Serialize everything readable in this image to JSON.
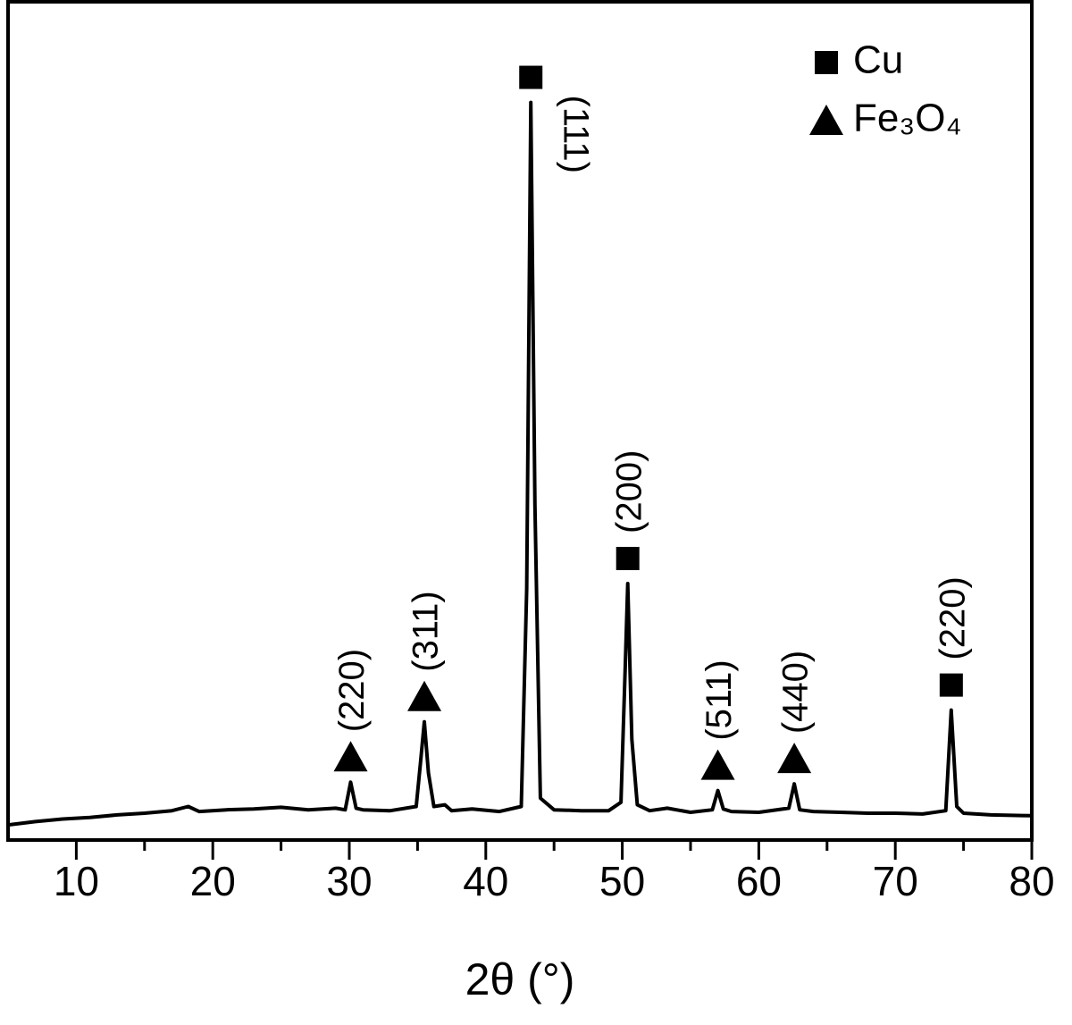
{
  "chart_data": {
    "type": "line",
    "xlabel": "2θ (°)",
    "color": "#000000",
    "xlim": [
      5,
      80
    ],
    "xticks": [
      10,
      20,
      30,
      40,
      50,
      60,
      70,
      80
    ],
    "xminorticks": [
      15,
      25,
      35,
      45,
      55,
      65,
      75
    ],
    "ylim": [
      0,
      100
    ],
    "x": [
      5,
      7,
      9,
      11,
      13,
      15,
      17,
      18.2,
      19,
      21,
      23,
      25,
      27,
      29,
      29.7,
      30.1,
      30.5,
      31,
      33,
      34.9,
      35.2,
      35.5,
      35.8,
      36.2,
      37,
      37.5,
      39,
      41,
      42.6,
      43.0,
      43.3,
      43.6,
      44,
      45,
      47,
      49,
      49.9,
      50.2,
      50.4,
      50.7,
      51.1,
      52,
      53.3,
      55,
      56.6,
      57.0,
      57.4,
      58,
      60,
      62.2,
      62.6,
      63.0,
      64,
      66,
      68,
      70,
      72,
      73.7,
      74.1,
      74.5,
      75,
      77,
      80
    ],
    "values": [
      1.8,
      2.2,
      2.5,
      2.7,
      3.0,
      3.2,
      3.5,
      4.0,
      3.4,
      3.6,
      3.7,
      3.9,
      3.6,
      3.8,
      3.6,
      6.9,
      3.8,
      3.6,
      3.5,
      4.0,
      9,
      14.1,
      8,
      4.0,
      4.2,
      3.5,
      3.7,
      3.4,
      4.0,
      30,
      88,
      40,
      5,
      3.6,
      3.5,
      3.5,
      4.5,
      20,
      30.6,
      12,
      4.2,
      3.5,
      3.8,
      3.3,
      3.6,
      5.9,
      3.7,
      3.4,
      3.3,
      3.8,
      6.7,
      3.6,
      3.4,
      3.3,
      3.2,
      3.2,
      3.1,
      3.5,
      15.5,
      4.0,
      3.2,
      3.0,
      2.9
    ],
    "annotations": [
      {
        "x": 30.1,
        "y": 6.9,
        "label": "(220)",
        "marker": "triangle"
      },
      {
        "x": 35.5,
        "y": 14.1,
        "label": "(311)",
        "marker": "triangle"
      },
      {
        "x": 43.3,
        "y": 88,
        "label": "(111)",
        "marker": "square"
      },
      {
        "x": 50.4,
        "y": 30.6,
        "label": "(200)",
        "marker": "square"
      },
      {
        "x": 57.0,
        "y": 5.9,
        "label": "(511)",
        "marker": "triangle"
      },
      {
        "x": 62.6,
        "y": 6.7,
        "label": "(440)",
        "marker": "triangle"
      },
      {
        "x": 74.1,
        "y": 15.5,
        "label": "(220)",
        "marker": "square"
      }
    ],
    "legend": [
      {
        "label": "Cu",
        "marker": "square"
      },
      {
        "label": "Fe₃O₄",
        "marker": "triangle"
      }
    ],
    "legend_position": "upper right"
  }
}
